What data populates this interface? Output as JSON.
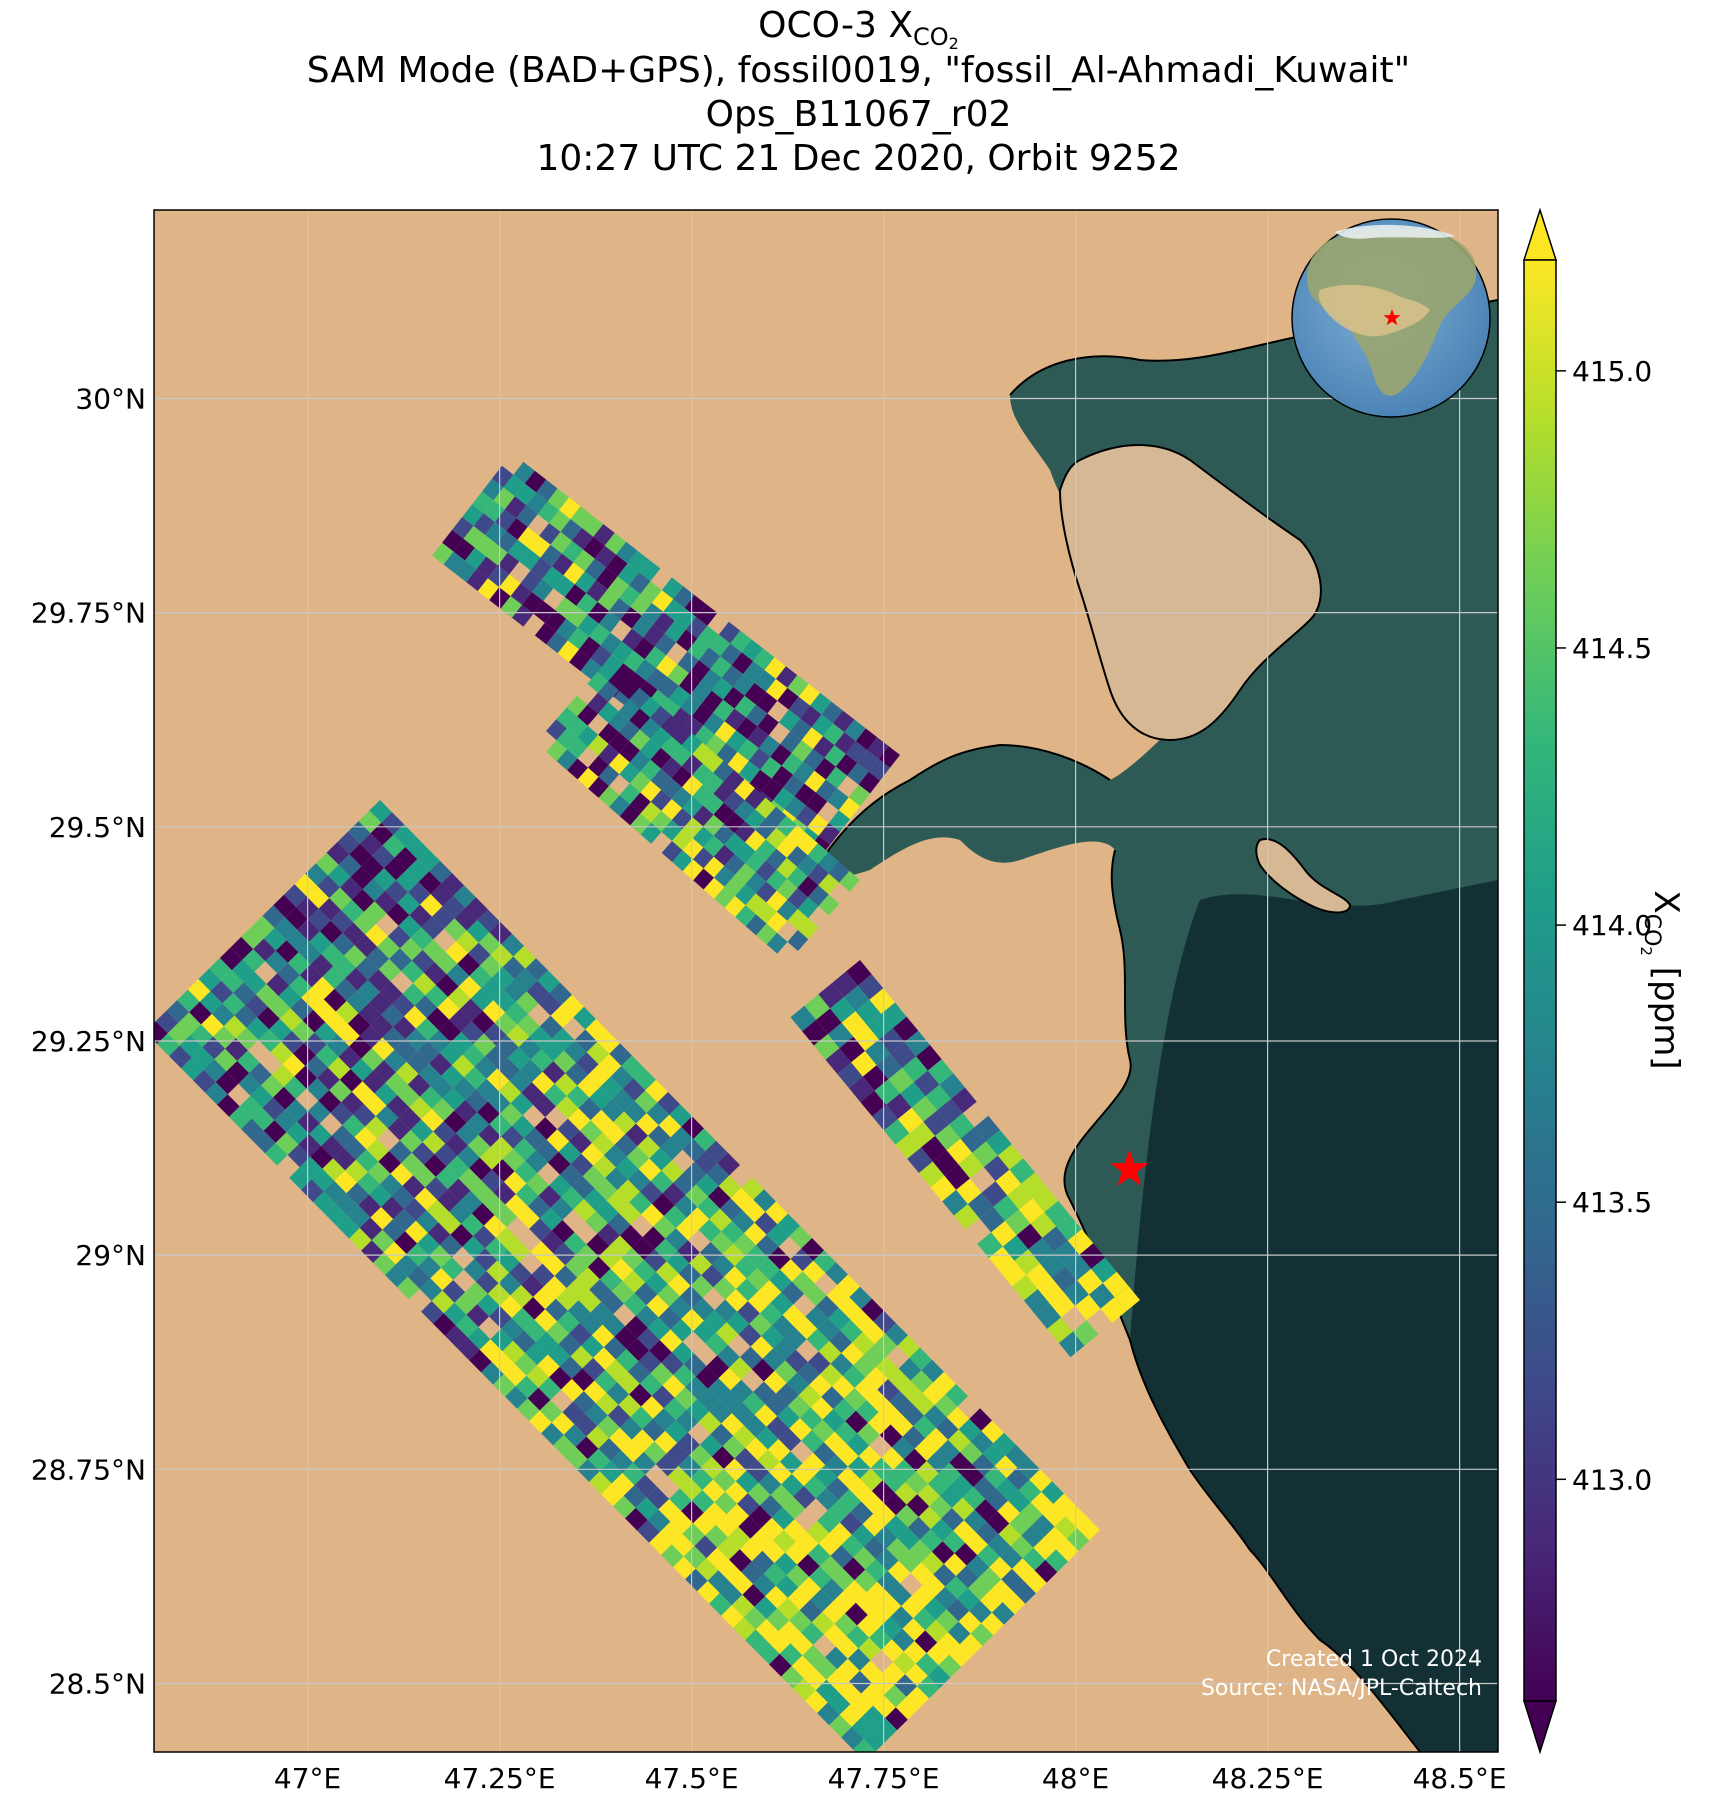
{
  "title": {
    "line1_prefix": "OCO-3 X",
    "line1_sub": "CO",
    "line1_subsub": "2",
    "line2": "SAM Mode (BAD+GPS), fossil0019, \"fossil_Al-Ahmadi_Kuwait\"",
    "line3": "Ops_B11067_r02",
    "line4": "10:27 UTC 21 Dec 2020, Orbit 9252"
  },
  "map": {
    "lon_range": [
      46.8,
      48.55
    ],
    "lat_range": [
      28.42,
      30.22
    ],
    "lon_ticks": [
      {
        "value": 47.0,
        "label": "47°E"
      },
      {
        "value": 47.25,
        "label": "47.25°E"
      },
      {
        "value": 47.5,
        "label": "47.5°E"
      },
      {
        "value": 47.75,
        "label": "47.75°E"
      },
      {
        "value": 48.0,
        "label": "48°E"
      },
      {
        "value": 48.25,
        "label": "48.25°E"
      },
      {
        "value": 48.5,
        "label": "48.5°E"
      }
    ],
    "lat_ticks": [
      {
        "value": 30.0,
        "label": "30°N"
      },
      {
        "value": 29.75,
        "label": "29.75°N"
      },
      {
        "value": 29.5,
        "label": "29.5°N"
      },
      {
        "value": 29.25,
        "label": "29.25°N"
      },
      {
        "value": 29.0,
        "label": "29°N"
      },
      {
        "value": 28.75,
        "label": "28.75°N"
      },
      {
        "value": 28.5,
        "label": "28.5°N"
      }
    ],
    "grid": true,
    "target_marker": {
      "name": "fossil_Al-Ahmadi_Kuwait",
      "lon": 48.07,
      "lat": 29.1,
      "color": "#ff0000"
    },
    "inset_globe": {
      "marker_color": "#ff0000"
    },
    "credit_line1": "Created 1 Oct 2024",
    "credit_line2": "Source: NASA/JPL-Caltech",
    "colors": {
      "land": "#dfb587",
      "water": "#2d5a54",
      "grid": "#c8c8c8"
    }
  },
  "colorbar": {
    "label_prefix": "X",
    "label_sub": "CO",
    "label_subsub": "2",
    "label_suffix": " [ppm]",
    "min": 412.6,
    "max": 415.2,
    "ticks": [
      {
        "value": 413.0,
        "label": "413.0"
      },
      {
        "value": 413.5,
        "label": "413.5"
      },
      {
        "value": 414.0,
        "label": "414.0"
      },
      {
        "value": 414.5,
        "label": "414.5"
      },
      {
        "value": 415.0,
        "label": "415.0"
      }
    ],
    "colormap": "viridis",
    "extend": "both"
  }
}
